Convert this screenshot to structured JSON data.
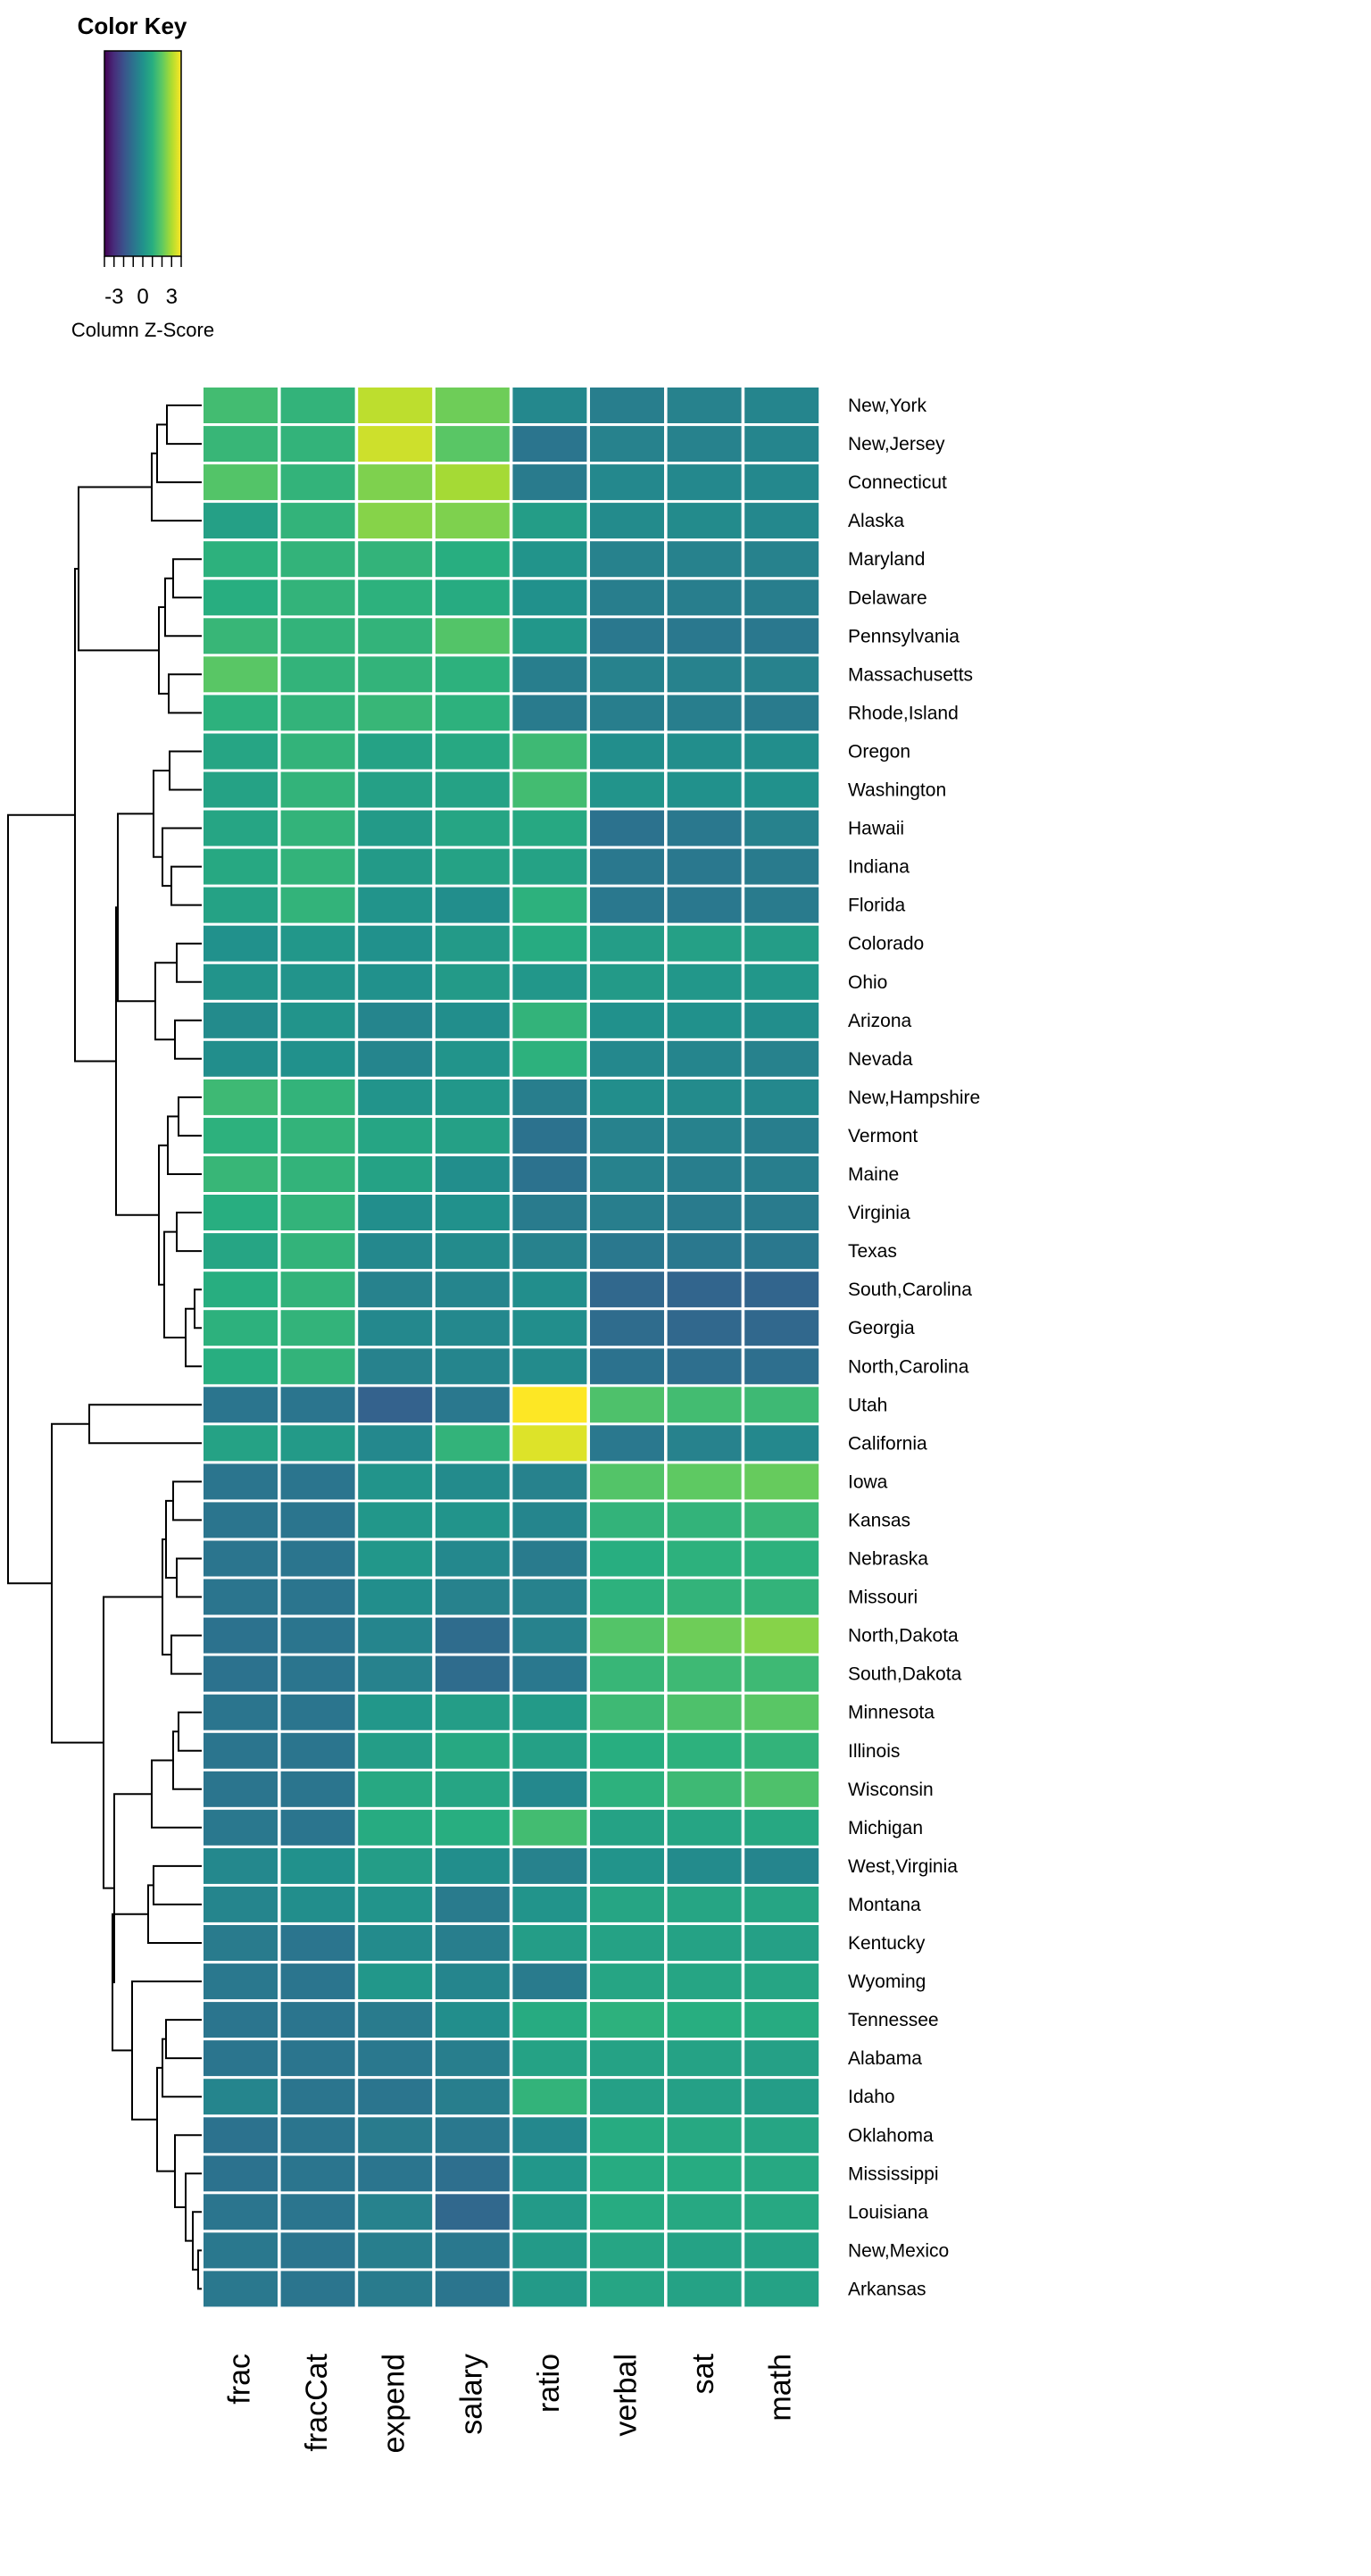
{
  "chart_data": {
    "type": "heatmap",
    "title": "",
    "color_key": {
      "title": "Color Key",
      "label": "Column Z-Score",
      "tick_labels": [
        "-3",
        "0",
        "3"
      ],
      "range": [
        -4,
        4
      ],
      "palette": "viridis"
    },
    "columns": [
      "frac",
      "fracCat",
      "expend",
      "salary",
      "ratio",
      "verbal",
      "sat",
      "math"
    ],
    "rows": [
      "New,York",
      "New,Jersey",
      "Connecticut",
      "Alaska",
      "Maryland",
      "Delaware",
      "Pennsylvania",
      "Massachusetts",
      "Rhode,Island",
      "Oregon",
      "Washington",
      "Hawaii",
      "Indiana",
      "Florida",
      "Colorado",
      "Ohio",
      "Arizona",
      "Nevada",
      "New,Hampshire",
      "Vermont",
      "Maine",
      "Virginia",
      "Texas",
      "South,Carolina",
      "Georgia",
      "North,Carolina",
      "Utah",
      "California",
      "Iowa",
      "Kansas",
      "Nebraska",
      "Missouri",
      "North,Dakota",
      "South,Dakota",
      "Minnesota",
      "Illinois",
      "Wisconsin",
      "Michigan",
      "West,Virginia",
      "Montana",
      "Kentucky",
      "Wyoming",
      "Tennessee",
      "Alabama",
      "Idaho",
      "Oklahoma",
      "Mississippi",
      "Louisiana",
      "New,Mexico",
      "Arkansas"
    ],
    "values": [
      [
        1.5,
        1.2,
        3.2,
        2.2,
        -0.3,
        -0.6,
        -0.5,
        -0.4
      ],
      [
        1.3,
        1.2,
        3.4,
        1.9,
        -0.9,
        -0.5,
        -0.5,
        -0.4
      ],
      [
        1.8,
        1.2,
        2.4,
        2.9,
        -0.7,
        -0.3,
        -0.3,
        -0.3
      ],
      [
        0.5,
        1.2,
        2.5,
        2.4,
        0.4,
        -0.2,
        -0.2,
        -0.3
      ],
      [
        1.1,
        1.2,
        1.2,
        1.0,
        0.1,
        -0.5,
        -0.5,
        -0.5
      ],
      [
        1.0,
        1.2,
        1.1,
        0.9,
        0.0,
        -0.6,
        -0.6,
        -0.6
      ],
      [
        1.3,
        1.2,
        1.2,
        1.8,
        0.2,
        -0.8,
        -0.8,
        -0.8
      ],
      [
        1.9,
        1.2,
        1.2,
        1.1,
        -0.6,
        -0.5,
        -0.5,
        -0.5
      ],
      [
        1.1,
        1.2,
        1.3,
        1.1,
        -0.7,
        -0.6,
        -0.6,
        -0.7
      ],
      [
        0.7,
        1.2,
        0.6,
        0.8,
        1.4,
        -0.1,
        -0.1,
        -0.1
      ],
      [
        0.6,
        1.2,
        0.5,
        0.6,
        1.5,
        0.1,
        0.0,
        0.0
      ],
      [
        0.7,
        1.2,
        0.3,
        0.7,
        0.8,
        -1.0,
        -0.8,
        -0.5
      ],
      [
        0.8,
        1.2,
        0.3,
        0.6,
        0.6,
        -0.8,
        -0.8,
        -0.7
      ],
      [
        0.6,
        1.2,
        0.1,
        -0.1,
        1.1,
        -0.8,
        -0.8,
        -0.7
      ],
      [
        0.0,
        0.2,
        0.0,
        0.3,
        0.9,
        0.4,
        0.5,
        0.4
      ],
      [
        0.1,
        0.1,
        0.0,
        0.3,
        0.2,
        0.3,
        0.2,
        0.2
      ],
      [
        -0.2,
        0.1,
        -0.4,
        -0.1,
        1.2,
        0.0,
        0.0,
        -0.1
      ],
      [
        -0.1,
        0.0,
        -0.4,
        0.1,
        1.1,
        -0.3,
        -0.4,
        -0.5
      ],
      [
        1.4,
        1.2,
        0.1,
        0.2,
        -0.6,
        -0.1,
        -0.2,
        -0.3
      ],
      [
        1.1,
        1.2,
        0.7,
        0.5,
        -1.0,
        -0.5,
        -0.5,
        -0.6
      ],
      [
        1.3,
        1.2,
        0.6,
        -0.1,
        -1.0,
        -0.5,
        -0.6,
        -0.6
      ],
      [
        1.0,
        1.2,
        -0.1,
        0.0,
        -0.7,
        -0.6,
        -0.7,
        -0.7
      ],
      [
        0.7,
        1.2,
        -0.3,
        -0.2,
        -0.5,
        -0.8,
        -0.8,
        -0.8
      ],
      [
        1.0,
        1.2,
        -0.5,
        -0.4,
        -0.1,
        -1.3,
        -1.4,
        -1.4
      ],
      [
        1.1,
        1.2,
        -0.3,
        -0.3,
        -0.1,
        -1.2,
        -1.3,
        -1.3
      ],
      [
        1.0,
        1.2,
        -0.5,
        -0.4,
        -0.2,
        -1.0,
        -1.1,
        -1.1
      ],
      [
        -0.9,
        -0.9,
        -1.5,
        -0.8,
        4.0,
        1.7,
        1.5,
        1.4
      ],
      [
        0.6,
        0.3,
        -0.3,
        1.2,
        3.6,
        -0.8,
        -0.5,
        -0.3
      ],
      [
        -0.9,
        -0.9,
        0.1,
        -0.2,
        -0.5,
        1.8,
        2.0,
        2.1
      ],
      [
        -0.9,
        -0.9,
        0.2,
        0.1,
        -0.4,
        1.2,
        1.2,
        1.3
      ],
      [
        -0.9,
        -0.9,
        0.2,
        -0.3,
        -0.7,
        1.0,
        1.1,
        1.1
      ],
      [
        -0.9,
        -0.9,
        -0.1,
        -0.5,
        -0.5,
        1.1,
        1.2,
        1.2
      ],
      [
        -1.0,
        -0.9,
        -0.4,
        -1.2,
        -0.5,
        1.8,
        2.2,
        2.5
      ],
      [
        -1.0,
        -0.9,
        -0.5,
        -1.2,
        -0.8,
        1.3,
        1.4,
        1.4
      ],
      [
        -0.9,
        -0.9,
        0.2,
        0.4,
        0.3,
        1.4,
        1.7,
        1.9
      ],
      [
        -0.9,
        -0.9,
        0.4,
        0.8,
        0.5,
        1.0,
        1.1,
        1.2
      ],
      [
        -0.9,
        -0.9,
        0.8,
        0.7,
        -0.3,
        1.1,
        1.4,
        1.7
      ],
      [
        -0.8,
        -0.9,
        0.9,
        1.0,
        1.5,
        0.6,
        0.7,
        0.8
      ],
      [
        -0.3,
        0.0,
        0.4,
        -0.1,
        -0.5,
        0.1,
        -0.2,
        -0.4
      ],
      [
        -0.4,
        -0.1,
        0.1,
        -0.7,
        0.1,
        0.7,
        0.7,
        0.7
      ],
      [
        -0.7,
        -0.9,
        -0.2,
        -0.6,
        0.4,
        0.6,
        0.6,
        0.5
      ],
      [
        -0.8,
        -0.9,
        0.2,
        -0.4,
        -0.7,
        0.7,
        0.7,
        0.7
      ],
      [
        -0.9,
        -0.9,
        -0.7,
        -0.1,
        0.9,
        1.1,
        1.0,
        0.9
      ],
      [
        -0.9,
        -0.9,
        -0.8,
        -0.6,
        0.6,
        0.6,
        0.6,
        0.5
      ],
      [
        -0.4,
        -0.9,
        -0.9,
        -0.6,
        1.2,
        0.5,
        0.5,
        0.4
      ],
      [
        -1.0,
        -0.9,
        -0.7,
        -0.8,
        -0.3,
        0.9,
        0.8,
        0.7
      ],
      [
        -1.0,
        -0.9,
        -0.9,
        -1.1,
        0.2,
        0.9,
        0.9,
        0.8
      ],
      [
        -0.9,
        -0.9,
        -0.5,
        -1.3,
        0.3,
        0.9,
        0.8,
        0.8
      ],
      [
        -0.8,
        -0.9,
        -0.6,
        -0.8,
        0.3,
        0.7,
        0.6,
        0.6
      ],
      [
        -0.8,
        -0.9,
        -0.7,
        -0.9,
        0.3,
        0.7,
        0.6,
        0.6
      ]
    ]
  }
}
